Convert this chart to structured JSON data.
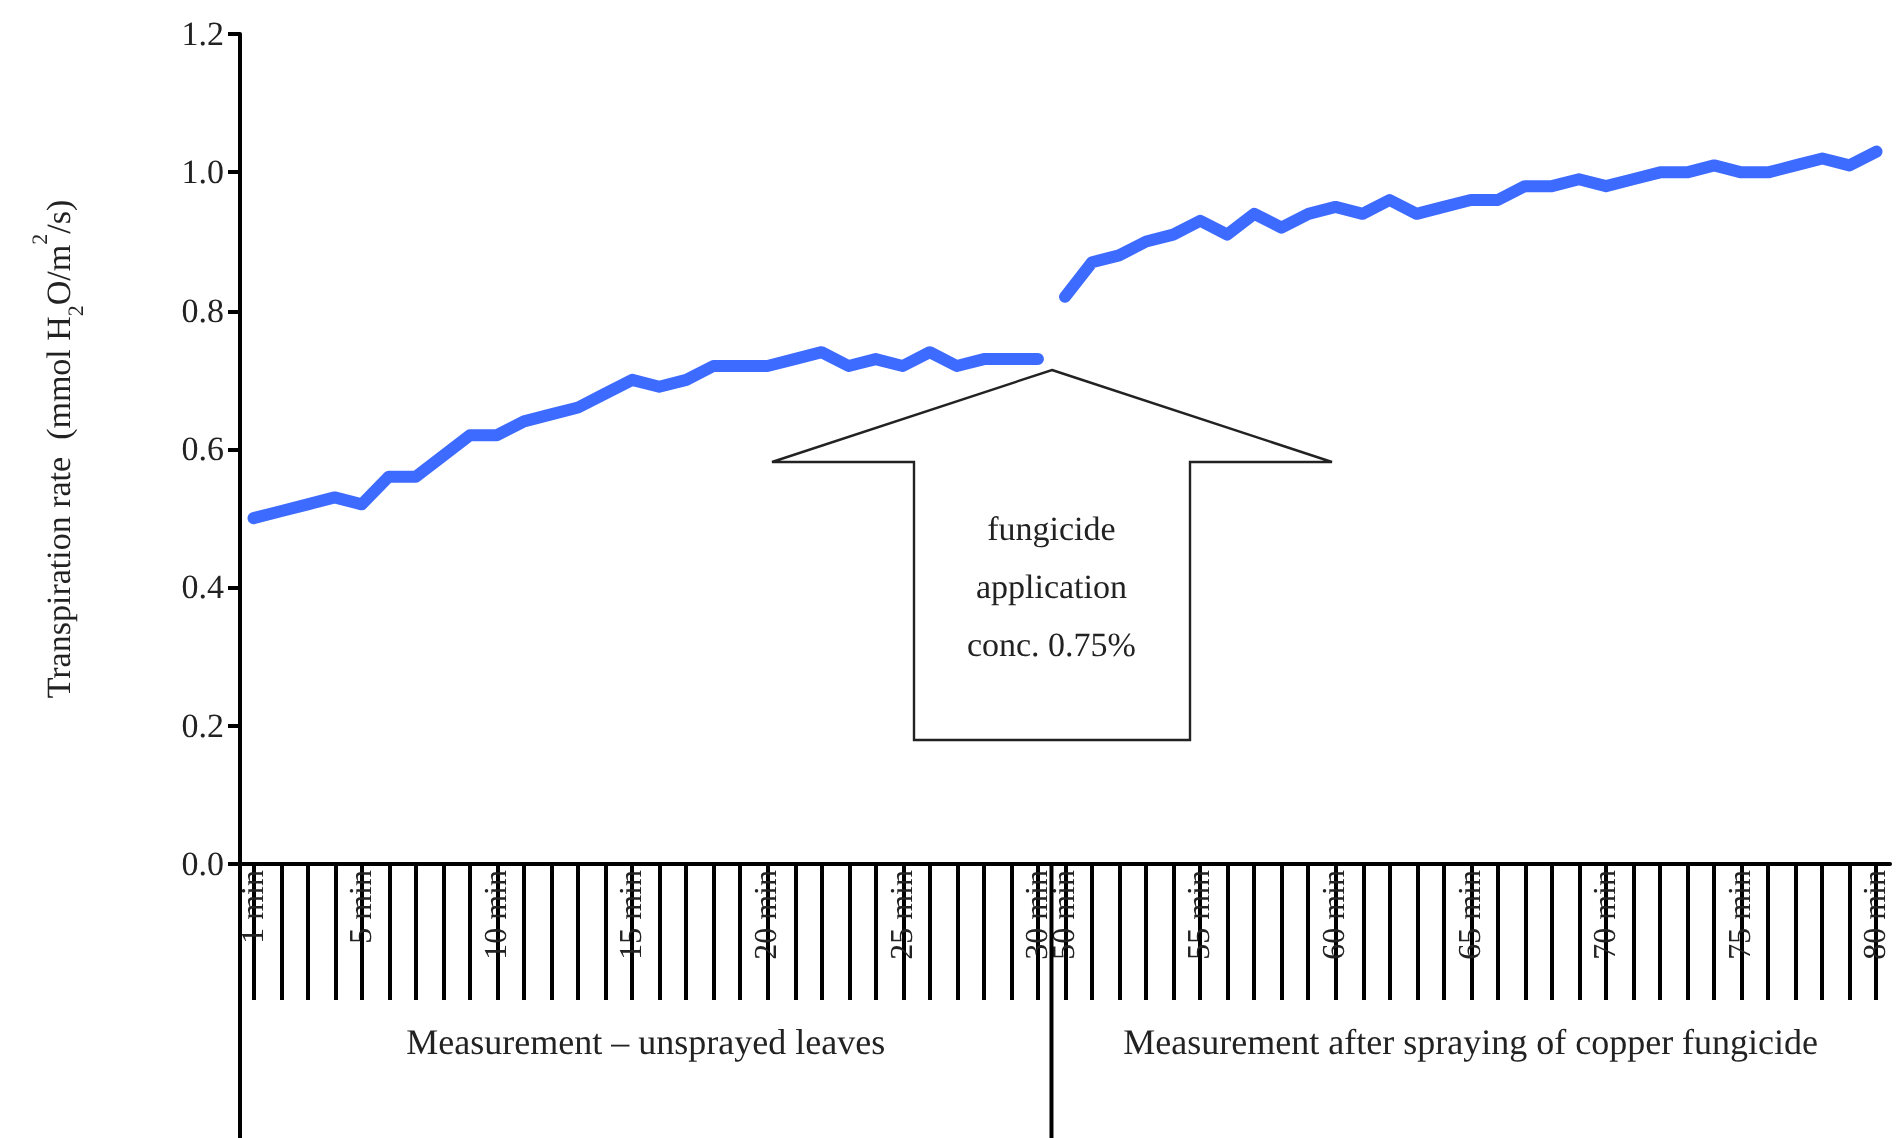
{
  "chart_data": {
    "type": "line",
    "ylabel": "Transpiration rate  (mmol H$_{2}$O/m$^{2}$/s)",
    "categories": [
      "1 min",
      null,
      null,
      null,
      "5 min",
      null,
      null,
      null,
      null,
      "10 min",
      null,
      null,
      null,
      null,
      "15 min",
      null,
      null,
      null,
      null,
      "20 min",
      null,
      null,
      null,
      null,
      "25 min",
      null,
      null,
      null,
      null,
      "30 min",
      "50 min",
      null,
      null,
      null,
      null,
      "55 min",
      null,
      null,
      null,
      null,
      "60 min",
      null,
      null,
      null,
      null,
      "65 min",
      null,
      null,
      null,
      null,
      "70 min",
      null,
      null,
      null,
      null,
      "75 min",
      null,
      null,
      null,
      null,
      "80 min"
    ],
    "series": [
      {
        "color": "#3d6bff",
        "values": [
          0.5,
          0.51,
          0.52,
          0.53,
          0.52,
          0.56,
          0.56,
          0.59,
          0.62,
          0.62,
          0.64,
          0.65,
          0.66,
          0.68,
          0.7,
          0.69,
          0.7,
          0.72,
          0.72,
          0.72,
          0.73,
          0.74,
          0.72,
          0.73,
          0.72,
          0.74,
          0.72,
          0.73,
          0.73,
          0.73,
          null,
          null,
          null,
          null,
          null,
          null,
          null,
          null,
          null,
          null,
          null,
          null,
          null,
          null,
          null,
          null,
          null,
          null,
          null,
          null,
          null,
          null,
          null,
          null,
          null,
          null,
          null,
          null,
          null,
          null,
          null
        ]
      },
      {
        "color": "#3d6bff",
        "values": [
          null,
          null,
          null,
          null,
          null,
          null,
          null,
          null,
          null,
          null,
          null,
          null,
          null,
          null,
          null,
          null,
          null,
          null,
          null,
          null,
          null,
          null,
          null,
          null,
          null,
          null,
          null,
          null,
          null,
          null,
          0.82,
          0.87,
          0.88,
          0.9,
          0.91,
          0.93,
          0.91,
          0.94,
          0.92,
          0.94,
          0.95,
          0.94,
          0.96,
          0.94,
          0.95,
          0.96,
          0.96,
          0.98,
          0.98,
          0.99,
          0.98,
          0.99,
          1.0,
          1.0,
          1.01,
          1.0,
          1.0,
          1.01,
          1.02,
          1.01,
          1.03
        ]
      }
    ],
    "ylim": [
      0,
      1.2
    ],
    "yticks": [
      {
        "value": 0,
        "label": "0.0"
      },
      {
        "value": 0.2,
        "label": "0.2"
      },
      {
        "value": 0.4,
        "label": "0.4"
      },
      {
        "value": 0.6,
        "label": "0.6"
      },
      {
        "value": 0.8,
        "label": "0.8"
      },
      {
        "value": 1.0,
        "label": "1.0"
      },
      {
        "value": 1.2,
        "label": "1.2"
      }
    ],
    "marker": "none",
    "line_style": "solid",
    "grid": false,
    "annotations": [
      "fungicide application conc. 0.75%",
      "Measurement – unsprayed leaves",
      "Measurement after spraying of copper fungicide"
    ]
  }
}
